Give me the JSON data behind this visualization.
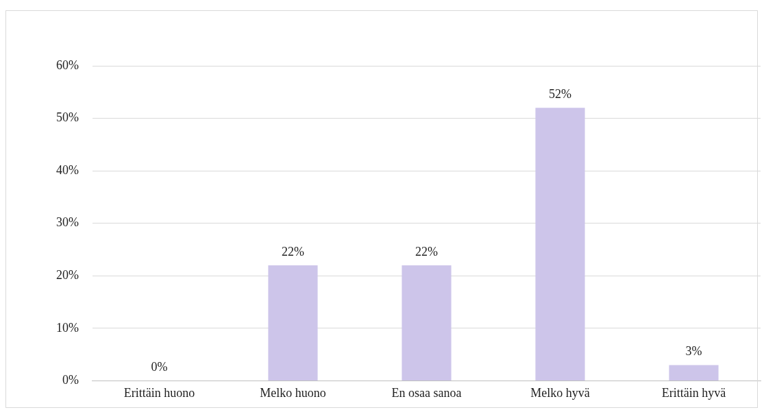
{
  "chart_data": {
    "type": "bar",
    "categories": [
      "Erittäin huono",
      "Melko huono",
      "En osaa sanoa",
      "Melko hyvä",
      "Erittäin hyvä"
    ],
    "values": [
      0,
      22,
      22,
      52,
      3
    ],
    "color": "#cdc5ea",
    "ylim": [
      0,
      60
    ],
    "yticks": [
      {
        "value": 0,
        "label": "0%"
      },
      {
        "value": 10,
        "label": "10%"
      },
      {
        "value": 20,
        "label": "20%"
      },
      {
        "value": 30,
        "label": "30%"
      },
      {
        "value": 40,
        "label": "40%"
      },
      {
        "value": 50,
        "label": "50%"
      },
      {
        "value": 60,
        "label": "60%"
      }
    ],
    "value_labels": [
      "0%",
      "22%",
      "22%",
      "52%",
      "3%"
    ],
    "grid": "y",
    "legend": false
  }
}
